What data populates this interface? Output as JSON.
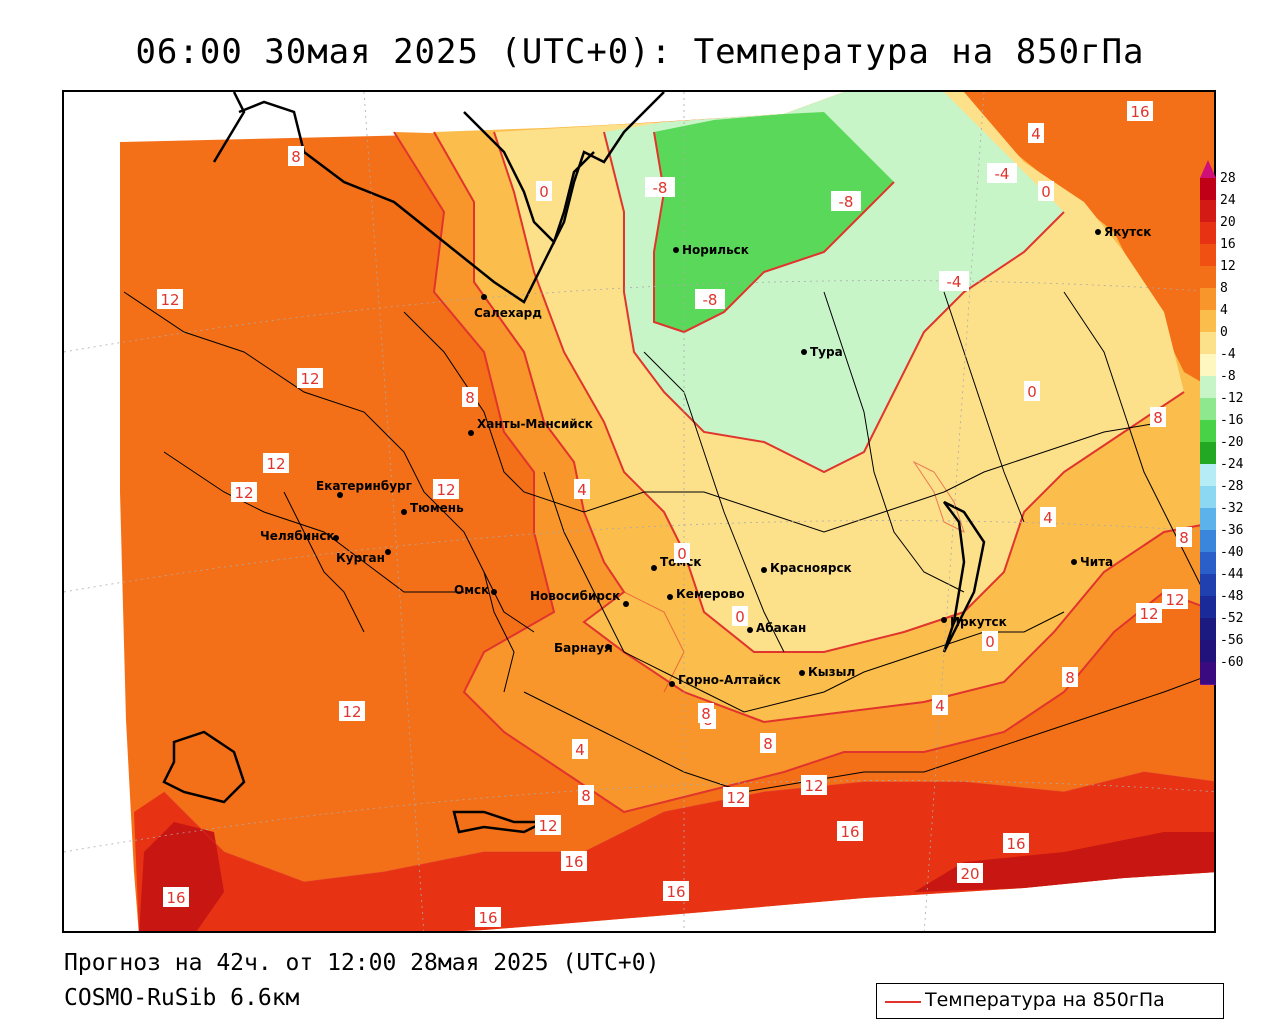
{
  "title": "06:00 30мая 2025 (UTC+0): Температура на 850гПа",
  "footer": {
    "forecast": "Прогноз на 42ч. от 12:00 28мая 2025 (UTC+0)",
    "model": "COSMO-RuSib 6.6км"
  },
  "legend": {
    "label": "Температура на 850гПа",
    "line_color": "#e0342c"
  },
  "colorbar": {
    "ticks": [
      "28",
      "24",
      "20",
      "16",
      "12",
      "8",
      "4",
      "0",
      "-4",
      "-8",
      "-12",
      "-16",
      "-20",
      "-24",
      "-28",
      "-32",
      "-36",
      "-40",
      "-44",
      "-48",
      "-52",
      "-56",
      "-60"
    ],
    "colors": [
      "#c00016",
      "#d41a14",
      "#e83214",
      "#f05012",
      "#f47018",
      "#f8962c",
      "#fbbd4c",
      "#fde08a",
      "#fef7c0",
      "#c8f5c8",
      "#8ee88e",
      "#48d248",
      "#22a822",
      "#b6ecf6",
      "#8cd8f2",
      "#5cb2ea",
      "#3a86dc",
      "#2a5ec8",
      "#2040b0",
      "#1a2a98",
      "#1a1a80",
      "#20127a",
      "#3a0a80"
    ]
  },
  "cities": [
    {
      "name": "Якутск"
    },
    {
      "name": "Норильск"
    },
    {
      "name": "Салехард"
    },
    {
      "name": "Тура"
    },
    {
      "name": "Ханты-Мансийск"
    },
    {
      "name": "Екатеринбург"
    },
    {
      "name": "Тюмень"
    },
    {
      "name": "Челябинск"
    },
    {
      "name": "Курган"
    },
    {
      "name": "Омск"
    },
    {
      "name": "Новосибирск"
    },
    {
      "name": "Томск"
    },
    {
      "name": "Красноярск"
    },
    {
      "name": "Кемерово"
    },
    {
      "name": "Барнаул"
    },
    {
      "name": "Абакан"
    },
    {
      "name": "Иркутск"
    },
    {
      "name": "Чита"
    },
    {
      "name": "Кызыл"
    },
    {
      "name": "Горно-Алтайск"
    }
  ],
  "isotherm_labels": [
    "16",
    "4",
    "-4",
    "0",
    "8",
    "-8",
    "-8",
    "-4",
    "-8",
    "0",
    "12",
    "12",
    "8",
    "12",
    "12",
    "12",
    "4",
    "0",
    "0",
    "0",
    "8",
    "4",
    "8",
    "8",
    "12",
    "12",
    "12",
    "4",
    "8",
    "4",
    "8",
    "8",
    "12",
    "12",
    "16",
    "12",
    "16",
    "16",
    "20",
    "16",
    "16",
    "16",
    "8",
    "0"
  ]
}
